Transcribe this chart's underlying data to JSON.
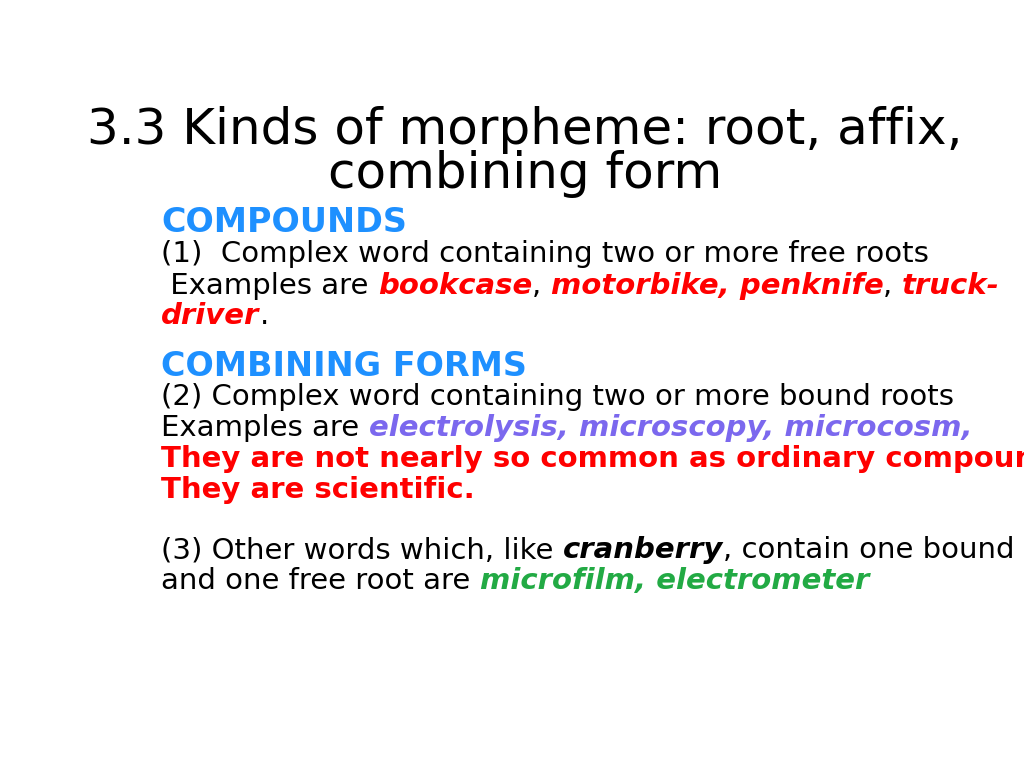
{
  "title_line1": "3.3 Kinds of morpheme: root, affix,",
  "title_line2": "combining form",
  "title_color": "#000000",
  "title_fontsize": 36,
  "bg_color": "#ffffff",
  "compounds_label": "COMPOUNDS",
  "compounds_color": "#1e90ff",
  "heading_fontsize": 24,
  "combining_label": "COMBINING FORMS",
  "combining_color": "#1e90ff",
  "red_color": "#ff0000",
  "green_color": "#22aa44",
  "purple_color": "#7b68ee",
  "black_color": "#000000",
  "body_fontsize": 21
}
